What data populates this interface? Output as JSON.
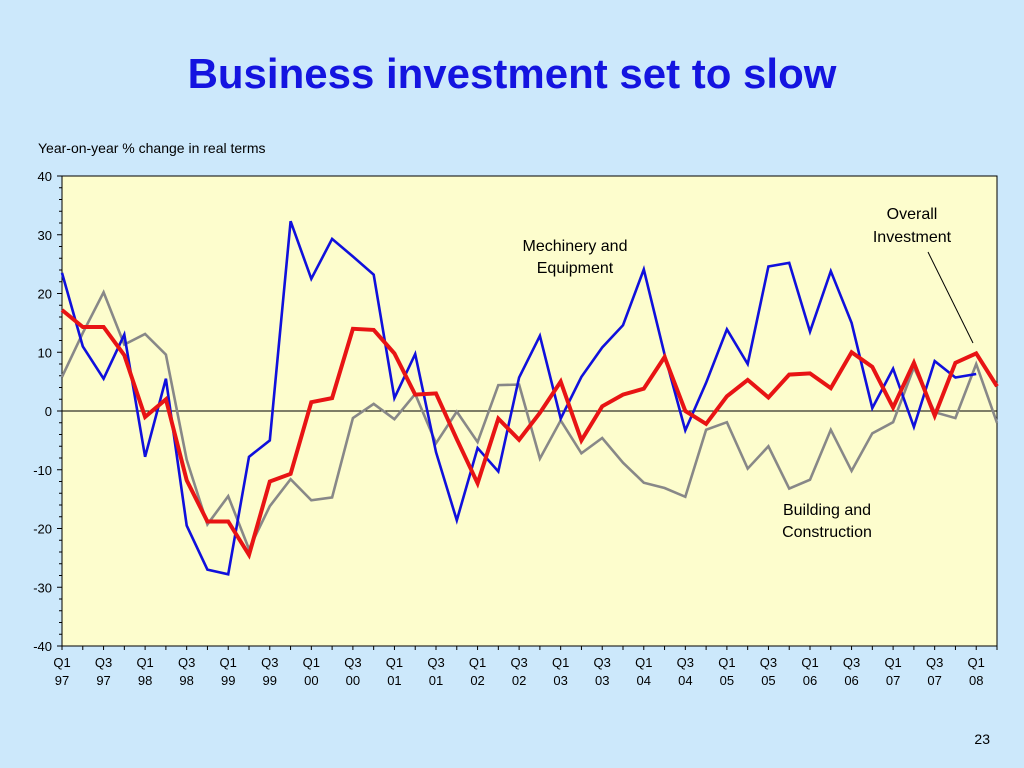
{
  "slide": {
    "title": "Business investment set to slow",
    "page_number": "23"
  },
  "colors": {
    "background": "#cce8fb",
    "plot_area": "#fdfdcd",
    "title": "#1414e0"
  },
  "chart_data": {
    "type": "line",
    "title": "",
    "ylabel": "Year-on-year % change in real terms",
    "xlabel": "",
    "ylim": [
      -40,
      40
    ],
    "y_ticks": [
      40,
      30,
      20,
      10,
      0,
      -10,
      -20,
      -30,
      -40
    ],
    "grid": false,
    "zero_line": true,
    "x_tick_labels": [
      [
        "Q1",
        "97"
      ],
      [
        "Q3",
        "97"
      ],
      [
        "Q1",
        "98"
      ],
      [
        "Q3",
        "98"
      ],
      [
        "Q1",
        "99"
      ],
      [
        "Q3",
        "99"
      ],
      [
        "Q1",
        "00"
      ],
      [
        "Q3",
        "00"
      ],
      [
        "Q1",
        "01"
      ],
      [
        "Q3",
        "01"
      ],
      [
        "Q1",
        "02"
      ],
      [
        "Q3",
        "02"
      ],
      [
        "Q1",
        "03"
      ],
      [
        "Q3",
        "03"
      ],
      [
        "Q1",
        "04"
      ],
      [
        "Q3",
        "04"
      ],
      [
        "Q1",
        "05"
      ],
      [
        "Q3",
        "05"
      ],
      [
        "Q1",
        "06"
      ],
      [
        "Q3",
        "06"
      ],
      [
        "Q1",
        "07"
      ],
      [
        "Q3",
        "07"
      ],
      [
        "Q1",
        "08"
      ]
    ],
    "series": [
      {
        "name": "Mechinery and Equipment",
        "label_lines": [
          "Mechinery and",
          "Equipment"
        ],
        "color": "#1010dc",
        "values": [
          23.5,
          11,
          5.5,
          13,
          -7.8,
          5.5,
          -19.5,
          -27,
          -27.8,
          -7.8,
          -5,
          32.3,
          22.5,
          29.3,
          26.3,
          23.2,
          2.2,
          9.7,
          -7,
          -18.6,
          -6.3,
          -10.3,
          5.7,
          12.8,
          -1.3,
          5.8,
          10.8,
          14.6,
          24.1,
          9.6,
          -3.3,
          4.8,
          13.9,
          8,
          24.6,
          25.2,
          13.5,
          23.8,
          15,
          0.5,
          7.2,
          -2.7,
          8.5,
          5.7,
          6.3
        ]
      },
      {
        "name": "Overall Investment",
        "label_lines": [
          "Overall",
          "Investment"
        ],
        "color": "#e81414",
        "values": [
          17.2,
          14.3,
          14.3,
          9.5,
          -1,
          2,
          -11.8,
          -18.8,
          -18.8,
          -24.5,
          -12,
          -10.7,
          1.5,
          2.2,
          14,
          13.8,
          9.8,
          2.8,
          3,
          -4.8,
          -12.3,
          -1.3,
          -4.9,
          -0.3,
          5,
          -5,
          0.8,
          2.8,
          3.8,
          9.2,
          0,
          -2.2,
          2.5,
          5.3,
          2.3,
          6.2,
          6.4,
          3.9,
          10,
          7.5,
          0.6,
          8.2,
          -0.8,
          8.2,
          9.8,
          4.2
        ]
      },
      {
        "name": "Building and Construction",
        "label_lines": [
          "Building and",
          "Construction"
        ],
        "color": "#888888",
        "values": [
          5.8,
          13.3,
          20.2,
          11.3,
          13.1,
          9.6,
          -8.3,
          -19.3,
          -14.5,
          -23.5,
          -16.2,
          -11.6,
          -15.2,
          -14.7,
          -1.2,
          1.2,
          -1.4,
          2.9,
          -5.5,
          -0.1,
          -5.3,
          4.4,
          4.5,
          -8.1,
          -1.6,
          -7.2,
          -4.6,
          -8.8,
          -12.2,
          -13.1,
          -14.6,
          -3.2,
          -1.9,
          -9.8,
          -6,
          -13.2,
          -11.7,
          -3.2,
          -10.2,
          -3.8,
          -1.9,
          7.4,
          -0.2,
          -1.2,
          8,
          -2
        ]
      }
    ],
    "annotations": [
      {
        "text_lines": [
          "Overall",
          "Investment"
        ],
        "points_to": "Overall Investment"
      }
    ]
  }
}
